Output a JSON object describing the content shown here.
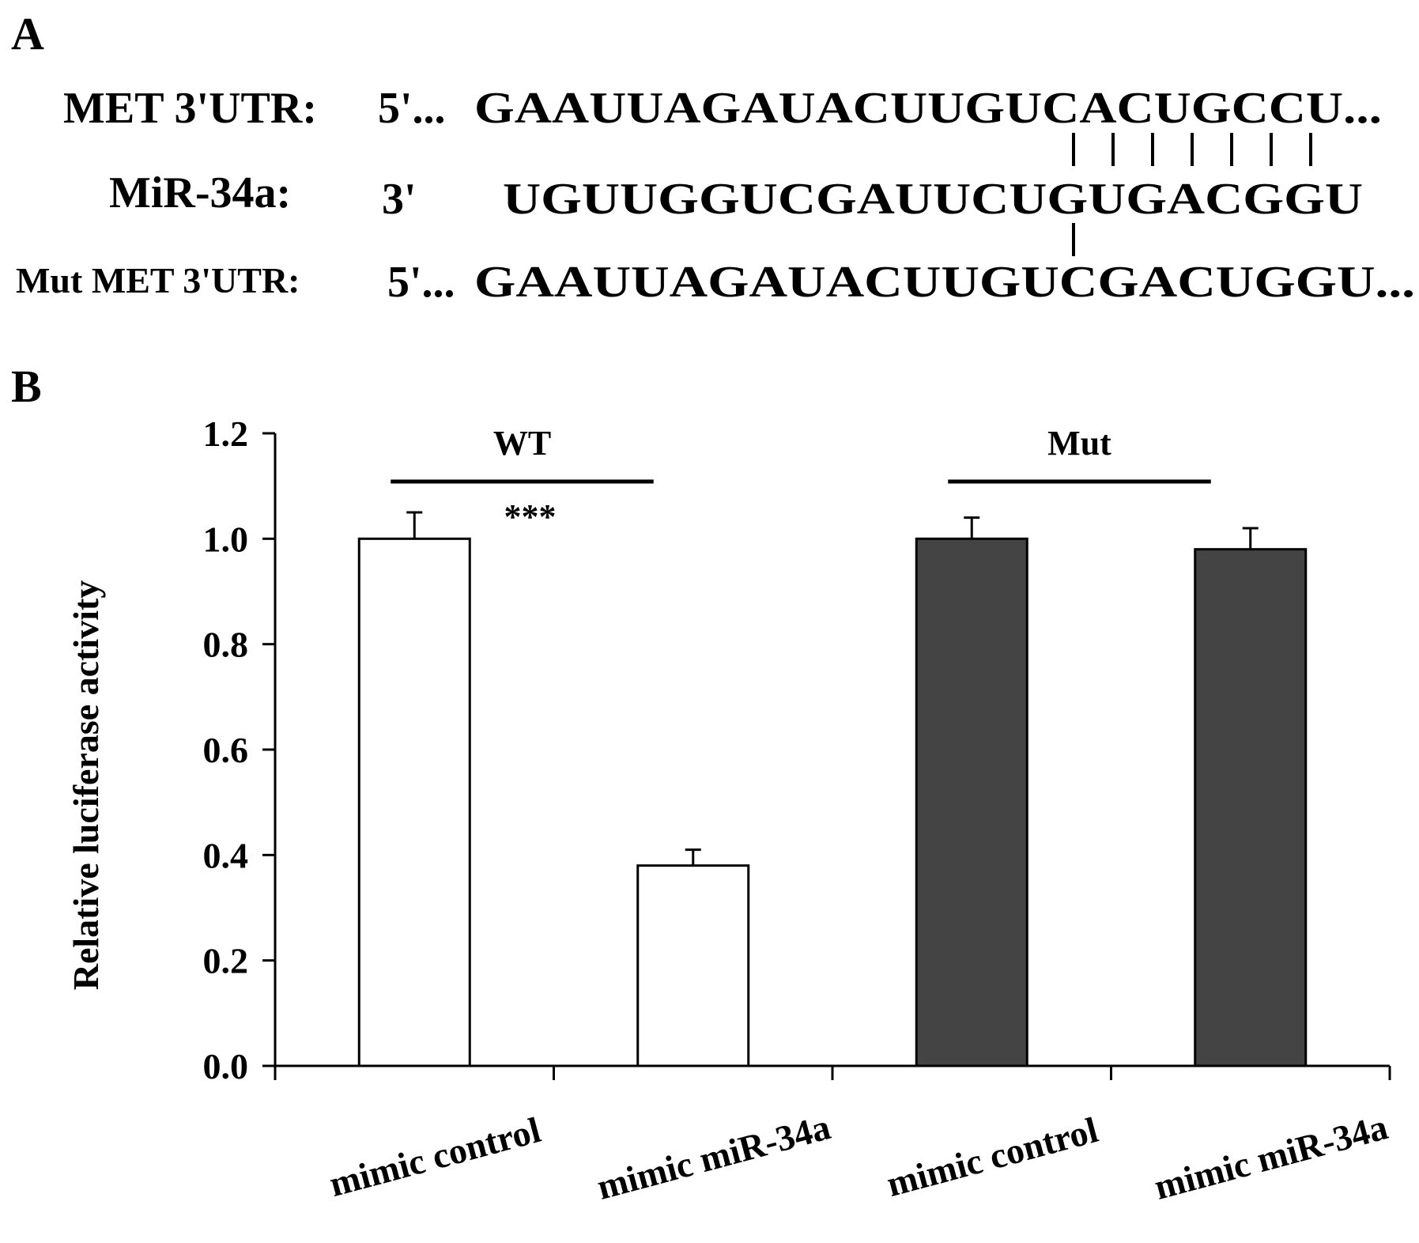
{
  "panel_a": {
    "label": "A",
    "rows": [
      {
        "name": "MET 3'UTR:",
        "prime": "5'...",
        "sequence": "GAAUUAGAUACUUGUCACUGCCU..."
      },
      {
        "name": "MiR-34a:",
        "prime": "3'",
        "sequence": "UGUUGGUCGAUUCUGUGACGGU"
      },
      {
        "name": "Mut MET 3'UTR:",
        "prime": "5'...",
        "sequence": "GAAUUAGAUACUUGUCGACUGGU..."
      }
    ]
  },
  "panel_b": {
    "label": "B"
  },
  "chart_data": {
    "type": "bar",
    "categories": [
      "mimic control",
      "mimic miR-34a",
      "mimic control",
      "mimic miR-34a"
    ],
    "values": [
      1.0,
      0.38,
      1.0,
      0.98
    ],
    "errors": [
      0.05,
      0.03,
      0.04,
      0.04
    ],
    "bar_colors": [
      "#ffffff",
      "#ffffff",
      "#444444",
      "#444444"
    ],
    "groups": [
      {
        "label": "WT",
        "categories": [
          0,
          1
        ],
        "significance": "***"
      },
      {
        "label": "Mut",
        "categories": [
          2,
          3
        ],
        "significance": ""
      }
    ],
    "ylabel": "Relative luciferase  activity",
    "xlabel": "",
    "ylim": [
      0,
      1.2
    ],
    "yticks": [
      "0.0",
      "0.2",
      "0.4",
      "0.6",
      "0.8",
      "1.0",
      "1.2"
    ],
    "grid": false,
    "legend": "none"
  }
}
